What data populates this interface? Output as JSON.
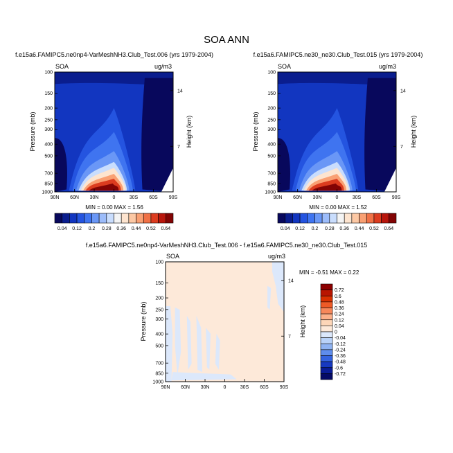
{
  "figure": {
    "title": "SOA ANN"
  },
  "chart_data": [
    {
      "type": "heatmap",
      "title": "f.e15a6.FAMIPC5.ne0np4-VarMeshNH3.Club_Test.006 (yrs 1979-2004)",
      "left_label": "SOA",
      "right_label": "ug/m3",
      "ylabel": "Pressure (mb)",
      "y2label": "Height (km)",
      "x_ticks": [
        "90N",
        "60N",
        "30N",
        "0",
        "30S",
        "60S",
        "90S"
      ],
      "y_ticks": [
        "100",
        "150",
        "200",
        "250",
        "300",
        "400",
        "500",
        "700",
        "850",
        "1000"
      ],
      "y2_ticks": [
        "14",
        "7"
      ],
      "min_max": "MIN =  0.00  MAX =  1.56",
      "min": 0.0,
      "max": 1.56,
      "colorbar_labels": [
        "0.04",
        "0.12",
        "0.2",
        "0.28",
        "0.36",
        "0.44",
        "0.52",
        "0.64"
      ]
    },
    {
      "type": "heatmap",
      "title": "f.e15a6.FAMIPC5.ne30_ne30.Club_Test.015 (yrs 1979-2004)",
      "left_label": "SOA",
      "right_label": "ug/m3",
      "ylabel": "Pressure (mb)",
      "y2label": "Height (km)",
      "x_ticks": [
        "90N",
        "60N",
        "30N",
        "0",
        "30S",
        "60S",
        "90S"
      ],
      "y_ticks": [
        "100",
        "150",
        "200",
        "250",
        "300",
        "400",
        "500",
        "700",
        "850",
        "1000"
      ],
      "y2_ticks": [
        "14",
        "7"
      ],
      "min_max": "MIN =  0.00  MAX =  1.52",
      "min": 0.0,
      "max": 1.52,
      "colorbar_labels": [
        "0.04",
        "0.12",
        "0.2",
        "0.28",
        "0.36",
        "0.44",
        "0.52",
        "0.64"
      ]
    },
    {
      "type": "heatmap",
      "title": "f.e15a6.FAMIPC5.ne0np4-VarMeshNH3.Club_Test.006 - f.e15a6.FAMIPC5.ne30_ne30.Club_Test.015",
      "left_label": "SOA",
      "right_label": "ug/m3",
      "ylabel": "Pressure (mb)",
      "y2label": "Height (km)",
      "x_ticks": [
        "90N",
        "60N",
        "30N",
        "0",
        "30S",
        "60S",
        "90S"
      ],
      "y_ticks": [
        "100",
        "150",
        "200",
        "250",
        "300",
        "400",
        "500",
        "700",
        "850",
        "1000"
      ],
      "y2_ticks": [
        "14",
        "7"
      ],
      "min_max": "MIN = -0.51  MAX =  0.22",
      "min": -0.51,
      "max": 0.22,
      "colorbar_labels": [
        "0.72",
        "0.6",
        "0.48",
        "0.36",
        "0.24",
        "0.12",
        "0.04",
        "0",
        "-0.04",
        "-0.12",
        "-0.24",
        "-0.36",
        "-0.48",
        "-0.6",
        "-0.72"
      ]
    }
  ],
  "colors": {
    "seq_scale": [
      "#08085c",
      "#0a1d8e",
      "#1236c0",
      "#2454e0",
      "#3f74f0",
      "#6a97f6",
      "#9cbcfa",
      "#c9ddfd",
      "#f4f4f4",
      "#fde4cf",
      "#fcc8a4",
      "#f9a073",
      "#f07146",
      "#dc3c1f",
      "#b8160c",
      "#820404"
    ],
    "diff_scale": [
      "#8c0000",
      "#b81500",
      "#d83000",
      "#ee5a26",
      "#f7875a",
      "#fcb08a",
      "#fdd6b8",
      "#fde9d9",
      "#dce8fb",
      "#b9d2f8",
      "#8fb3f2",
      "#5f8ded",
      "#3463e0",
      "#1739c0",
      "#0a1c96",
      "#050a66"
    ],
    "field_background": "#1236c0",
    "diff_background": "#fde9d9",
    "diff_patch": "#dce8fb"
  }
}
